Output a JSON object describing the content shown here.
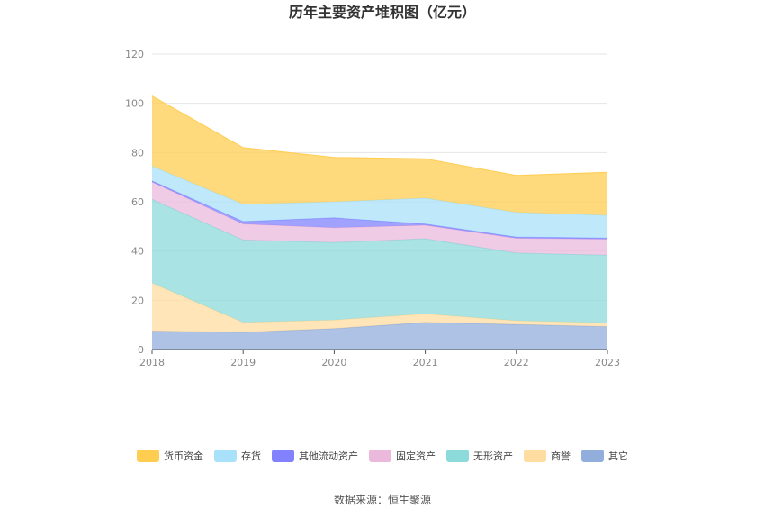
{
  "chart_data": {
    "type": "area",
    "stacked": true,
    "title": "历年主要资产堆积图（亿元）",
    "x": [
      "2018",
      "2019",
      "2020",
      "2021",
      "2022",
      "2023"
    ],
    "ylim": [
      0,
      120
    ],
    "yticks": [
      "0",
      "20",
      "40",
      "60",
      "80",
      "100",
      "120"
    ],
    "grid": true,
    "legend_position": "bottom",
    "series": [
      {
        "name": "其它",
        "color": "#92AEDC",
        "values": [
          7.5,
          7.0,
          8.5,
          11.0,
          10.2,
          9.3
        ]
      },
      {
        "name": "商誉",
        "color": "#FFDCA0",
        "values": [
          19.5,
          4.0,
          3.5,
          3.5,
          1.5,
          1.5
        ]
      },
      {
        "name": "无形资产",
        "color": "#8CDADA",
        "values": [
          34.0,
          33.5,
          31.5,
          30.5,
          27.5,
          27.5
        ]
      },
      {
        "name": "固定资产",
        "color": "#EBB9DC",
        "values": [
          7.0,
          6.5,
          6.0,
          5.5,
          6.0,
          6.5
        ]
      },
      {
        "name": "其他流动资产",
        "color": "#8282FF",
        "values": [
          0.5,
          1.0,
          4.0,
          0.5,
          0.5,
          0.5
        ]
      },
      {
        "name": "存货",
        "color": "#AAE1FA",
        "values": [
          6.0,
          7.0,
          6.5,
          10.5,
          10.0,
          9.2
        ]
      },
      {
        "name": "货币资金",
        "color": "#FFCD50",
        "values": [
          28.5,
          23.0,
          18.0,
          16.0,
          15.0,
          17.5
        ]
      }
    ],
    "legend_order": [
      "货币资金",
      "存货",
      "其他流动资产",
      "固定资产",
      "无形资产",
      "商誉",
      "其它"
    ]
  },
  "source_text": "数据来源：恒生聚源"
}
